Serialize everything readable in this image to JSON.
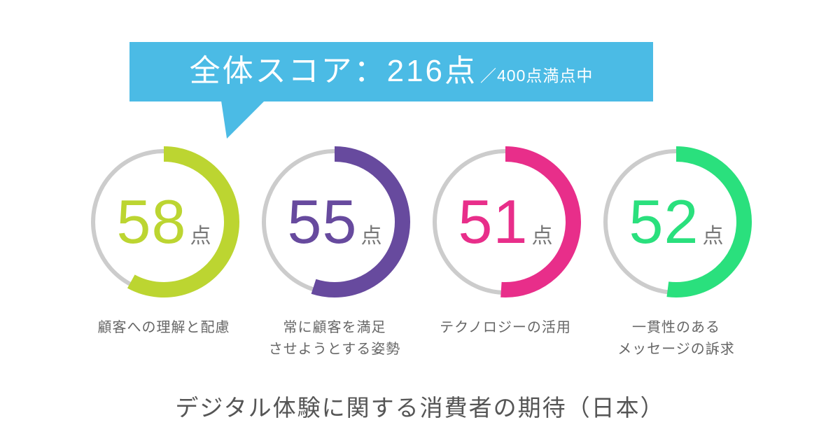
{
  "header": {
    "score_label": "全体スコア：216点",
    "score_suffix": "／400点満点中",
    "bubble_color": "#4bbbe5",
    "text_color": "#ffffff"
  },
  "footer": {
    "title": "デジタル体験に関する消費者の期待（日本）"
  },
  "chart_data": {
    "type": "gauge",
    "title": "デジタル体験に関する消費者の期待（日本）",
    "overall_score": 216,
    "overall_max": 400,
    "max_per_gauge": 100,
    "unit": "点",
    "track_color": "#cccccc",
    "number_unit_color": "#777777",
    "series": [
      {
        "name": "顧客への理解と配慮",
        "value": 58,
        "color": "#bcd531"
      },
      {
        "name": "常に顧客を満足\nさせようとする姿勢",
        "value": 55,
        "color": "#674a9e"
      },
      {
        "name": "テクノロジーの活用",
        "value": 51,
        "color": "#e82e8a"
      },
      {
        "name": "一貫性のあるメッセージの訴求",
        "value": 52,
        "color": "#2ae07d"
      },
      {
        "name_display_2": "常に顧客を満足させようとする姿勢"
      }
    ],
    "labels_display": [
      "顧客への理解と配慮",
      "常に顧客を満足\nさせようとする姿勢",
      "テクノロジーの活用",
      "一貫性のある\nメッセージの訴求"
    ]
  }
}
